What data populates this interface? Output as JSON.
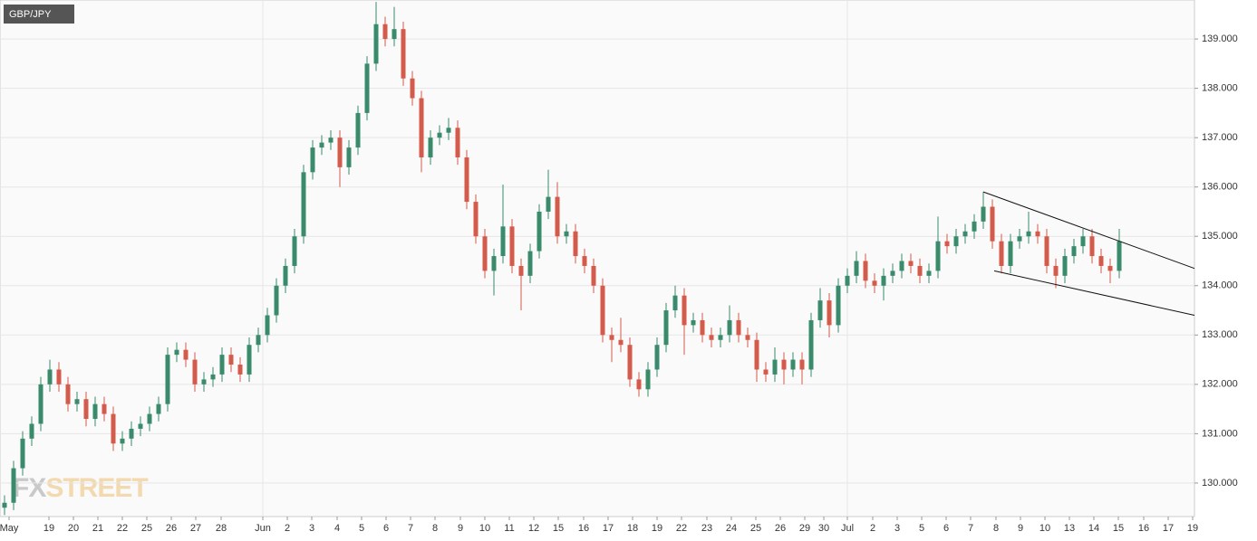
{
  "chart_data": {
    "type": "candlestick",
    "title": "GBP/JPY",
    "watermark": {
      "prefix": "FX",
      "suffix": "STREET"
    },
    "up_color": "#3a8a6c",
    "down_color": "#d45a4b",
    "grid": true,
    "xlim": [
      -0.5,
      131.3
    ],
    "ylim": [
      129.32,
      139.79
    ],
    "yticks": [
      {
        "value": 130,
        "label": "130.000"
      },
      {
        "value": 131,
        "label": "131.000"
      },
      {
        "value": 132,
        "label": "132.000"
      },
      {
        "value": 133,
        "label": "133.000"
      },
      {
        "value": 134,
        "label": "134.000"
      },
      {
        "value": 135,
        "label": "135.000"
      },
      {
        "value": 136,
        "label": "136.000"
      },
      {
        "value": 137,
        "label": "137.000"
      },
      {
        "value": 138,
        "label": "138.000"
      },
      {
        "value": 139,
        "label": "139.000"
      }
    ],
    "xticks": [
      {
        "value": 0.5,
        "label": "May"
      },
      {
        "value": 4.9,
        "label": "19"
      },
      {
        "value": 7.6,
        "label": "20"
      },
      {
        "value": 10.3,
        "label": "21"
      },
      {
        "value": 13.0,
        "label": "22"
      },
      {
        "value": 15.7,
        "label": "25"
      },
      {
        "value": 18.4,
        "label": "26"
      },
      {
        "value": 21.1,
        "label": "27"
      },
      {
        "value": 23.9,
        "label": "28"
      },
      {
        "value": 28.5,
        "label": "Jun"
      },
      {
        "value": 31.2,
        "label": "2"
      },
      {
        "value": 33.9,
        "label": "3"
      },
      {
        "value": 36.7,
        "label": "4"
      },
      {
        "value": 39.4,
        "label": "5"
      },
      {
        "value": 42.1,
        "label": "6"
      },
      {
        "value": 44.8,
        "label": "7"
      },
      {
        "value": 47.5,
        "label": "8"
      },
      {
        "value": 50.3,
        "label": "9"
      },
      {
        "value": 53.0,
        "label": "10"
      },
      {
        "value": 55.7,
        "label": "11"
      },
      {
        "value": 58.4,
        "label": "12"
      },
      {
        "value": 61.1,
        "label": "15"
      },
      {
        "value": 63.9,
        "label": "16"
      },
      {
        "value": 66.6,
        "label": "17"
      },
      {
        "value": 69.3,
        "label": "18"
      },
      {
        "value": 72.0,
        "label": "19"
      },
      {
        "value": 74.7,
        "label": "22"
      },
      {
        "value": 77.5,
        "label": "23"
      },
      {
        "value": 80.2,
        "label": "24"
      },
      {
        "value": 82.9,
        "label": "25"
      },
      {
        "value": 85.6,
        "label": "26"
      },
      {
        "value": 88.3,
        "label": "29"
      },
      {
        "value": 90.4,
        "label": "30"
      },
      {
        "value": 93.0,
        "label": "Jul"
      },
      {
        "value": 95.8,
        "label": "2"
      },
      {
        "value": 98.5,
        "label": "3"
      },
      {
        "value": 101.2,
        "label": "5"
      },
      {
        "value": 103.9,
        "label": "6"
      },
      {
        "value": 106.6,
        "label": "7"
      },
      {
        "value": 109.4,
        "label": "8"
      },
      {
        "value": 112.1,
        "label": "9"
      },
      {
        "value": 114.8,
        "label": "10"
      },
      {
        "value": 117.5,
        "label": "13"
      },
      {
        "value": 120.2,
        "label": "14"
      },
      {
        "value": 122.9,
        "label": "15"
      },
      {
        "value": 125.7,
        "label": "16"
      },
      {
        "value": 128.4,
        "label": "17"
      },
      {
        "value": 131.1,
        "label": "19"
      }
    ],
    "xgrid": [
      28.5,
      93.0
    ],
    "x": [
      0,
      1,
      2,
      3,
      4,
      5,
      6,
      7,
      8,
      9,
      10,
      11,
      12,
      13,
      14,
      15,
      16,
      17,
      18,
      19,
      20,
      21,
      22,
      23,
      24,
      25,
      26,
      27,
      28,
      29,
      30,
      31,
      32,
      33,
      34,
      35,
      36,
      37,
      38,
      39,
      40,
      41,
      42,
      43,
      44,
      45,
      46,
      47,
      48,
      49,
      50,
      51,
      52,
      53,
      54,
      55,
      56,
      57,
      58,
      59,
      60,
      61,
      62,
      63,
      64,
      65,
      66,
      67,
      68,
      69,
      70,
      71,
      72,
      73,
      74,
      75,
      76,
      77,
      78,
      79,
      80,
      81,
      82,
      83,
      84,
      85,
      86,
      87,
      88,
      89,
      90,
      91,
      92,
      93,
      94,
      95,
      96,
      97,
      98,
      99,
      100,
      101,
      102,
      103,
      104,
      105,
      106,
      107,
      108,
      109,
      110,
      111,
      112,
      113,
      114,
      115,
      116,
      117,
      118,
      119,
      120,
      121,
      122,
      123
    ],
    "open": [
      129.5,
      129.6,
      130.3,
      130.9,
      131.2,
      132.0,
      132.3,
      132.0,
      131.6,
      131.7,
      131.3,
      131.6,
      131.4,
      130.8,
      130.9,
      131.1,
      131.2,
      131.4,
      131.6,
      132.6,
      132.7,
      132.5,
      132.0,
      132.1,
      132.2,
      132.6,
      132.4,
      132.2,
      132.8,
      133.0,
      133.4,
      134.0,
      134.4,
      135.0,
      136.3,
      136.8,
      136.9,
      137.0,
      136.4,
      136.8,
      137.5,
      138.5,
      139.3,
      139.0,
      139.2,
      138.2,
      137.8,
      136.6,
      137.0,
      137.1,
      137.2,
      136.6,
      135.7,
      135.0,
      134.3,
      134.6,
      135.2,
      134.4,
      134.2,
      134.7,
      135.5,
      135.8,
      135.0,
      135.1,
      134.6,
      134.4,
      134.0,
      133.0,
      132.9,
      132.8,
      132.1,
      131.9,
      132.3,
      132.8,
      133.5,
      133.8,
      133.2,
      133.3,
      133.0,
      132.9,
      133.0,
      133.3,
      133.0,
      132.9,
      132.3,
      132.2,
      132.5,
      132.3,
      132.5,
      132.3,
      133.3,
      133.7,
      133.2,
      134.0,
      134.2,
      134.5,
      134.1,
      134.0,
      134.2,
      134.3,
      134.5,
      134.4,
      134.2,
      134.3,
      134.9,
      134.8,
      135.0,
      135.1,
      135.3,
      135.6,
      134.9,
      134.4,
      134.9,
      135.0,
      135.1,
      135.0,
      134.4,
      134.2,
      134.6,
      134.8,
      135.0,
      134.6,
      134.4,
      134.3
    ],
    "high": [
      129.75,
      130.45,
      131.05,
      131.35,
      132.15,
      132.5,
      132.45,
      132.15,
      131.85,
      131.85,
      131.75,
      131.75,
      131.55,
      131.05,
      131.25,
      131.35,
      131.55,
      131.75,
      132.75,
      132.85,
      132.85,
      132.65,
      132.25,
      132.35,
      132.75,
      132.75,
      132.55,
      132.95,
      133.15,
      133.55,
      134.15,
      134.55,
      135.15,
      136.45,
      136.95,
      137.05,
      137.15,
      137.15,
      136.95,
      137.65,
      138.65,
      139.75,
      139.45,
      139.65,
      139.35,
      138.35,
      137.95,
      137.15,
      137.25,
      137.4,
      137.35,
      136.75,
      135.85,
      135.15,
      134.75,
      136.05,
      135.35,
      134.55,
      134.85,
      135.65,
      136.35,
      136.1,
      135.25,
      135.25,
      134.75,
      134.55,
      134.15,
      133.15,
      133.35,
      132.95,
      132.25,
      132.45,
      132.95,
      133.65,
      134.0,
      133.95,
      133.45,
      133.45,
      133.15,
      133.15,
      133.6,
      133.45,
      133.15,
      133.05,
      132.45,
      132.75,
      132.65,
      132.65,
      132.65,
      133.45,
      133.95,
      133.85,
      134.15,
      134.35,
      134.7,
      134.65,
      134.25,
      134.35,
      134.45,
      134.65,
      134.65,
      134.55,
      134.45,
      135.4,
      135.05,
      135.15,
      135.25,
      135.45,
      135.9,
      135.75,
      135.05,
      135.05,
      135.15,
      135.5,
      135.25,
      135.15,
      134.55,
      134.75,
      134.95,
      135.15,
      135.15,
      134.75,
      134.55,
      135.15
    ],
    "low": [
      129.35,
      129.45,
      130.15,
      130.75,
      131.05,
      131.85,
      131.85,
      131.45,
      131.45,
      131.15,
      131.15,
      131.25,
      130.65,
      130.65,
      130.75,
      130.95,
      131.05,
      131.25,
      131.45,
      132.45,
      132.35,
      131.85,
      131.85,
      131.95,
      132.05,
      132.25,
      132.05,
      132.05,
      132.65,
      132.85,
      133.25,
      133.85,
      134.25,
      134.85,
      136.15,
      136.65,
      136.75,
      136.0,
      136.25,
      136.65,
      137.35,
      138.35,
      138.85,
      138.85,
      138.05,
      137.65,
      136.3,
      136.45,
      136.85,
      136.95,
      136.45,
      135.55,
      134.85,
      134.15,
      133.8,
      134.45,
      134.25,
      133.5,
      134.05,
      134.55,
      135.35,
      134.85,
      134.85,
      134.45,
      134.25,
      133.85,
      132.85,
      132.45,
      132.65,
      131.95,
      131.75,
      131.75,
      132.15,
      132.65,
      133.35,
      132.6,
      133.05,
      132.85,
      132.75,
      132.75,
      132.85,
      132.85,
      132.75,
      132.05,
      132.05,
      132.05,
      132.0,
      132.15,
      132.0,
      132.15,
      133.15,
      132.95,
      133.05,
      133.85,
      134.05,
      133.95,
      133.85,
      133.7,
      134.05,
      134.15,
      134.25,
      134.05,
      134.05,
      134.15,
      134.65,
      134.65,
      134.85,
      134.95,
      135.15,
      134.75,
      134.25,
      134.25,
      134.75,
      134.85,
      134.85,
      134.25,
      133.95,
      134.05,
      134.45,
      134.65,
      134.45,
      134.25,
      134.05,
      134.15
    ],
    "close": [
      129.6,
      130.3,
      130.9,
      131.2,
      132.0,
      132.3,
      132.0,
      131.6,
      131.7,
      131.3,
      131.6,
      131.4,
      130.8,
      130.9,
      131.1,
      131.2,
      131.4,
      131.6,
      132.6,
      132.7,
      132.5,
      132.0,
      132.1,
      132.2,
      132.6,
      132.4,
      132.2,
      132.8,
      133.0,
      133.4,
      134.0,
      134.4,
      135.0,
      136.3,
      136.8,
      136.9,
      137.0,
      136.4,
      136.8,
      137.5,
      138.5,
      139.3,
      139.0,
      139.2,
      138.2,
      137.8,
      136.6,
      137.0,
      137.1,
      137.2,
      136.6,
      135.7,
      135.0,
      134.3,
      134.6,
      135.2,
      134.4,
      134.2,
      134.7,
      135.5,
      135.8,
      135.0,
      135.1,
      134.6,
      134.4,
      134.0,
      133.0,
      132.9,
      132.8,
      132.1,
      131.9,
      132.3,
      132.8,
      133.5,
      133.8,
      133.2,
      133.3,
      133.0,
      132.9,
      133.0,
      133.3,
      133.0,
      132.9,
      132.3,
      132.2,
      132.5,
      132.3,
      132.5,
      132.3,
      133.3,
      133.7,
      133.2,
      134.0,
      134.2,
      134.5,
      134.1,
      134.0,
      134.2,
      134.3,
      134.5,
      134.4,
      134.2,
      134.3,
      134.9,
      134.8,
      135.0,
      135.1,
      135.3,
      135.6,
      134.9,
      134.4,
      134.9,
      135.0,
      135.1,
      135.0,
      134.4,
      134.2,
      134.6,
      134.8,
      135.0,
      134.6,
      134.4,
      134.3,
      134.9
    ],
    "trendlines": [
      {
        "x": [
          108,
          131.3
        ],
        "y": [
          135.9,
          134.35
        ]
      },
      {
        "x": [
          109.2,
          131.3
        ],
        "y": [
          134.3,
          133.4
        ]
      }
    ]
  }
}
